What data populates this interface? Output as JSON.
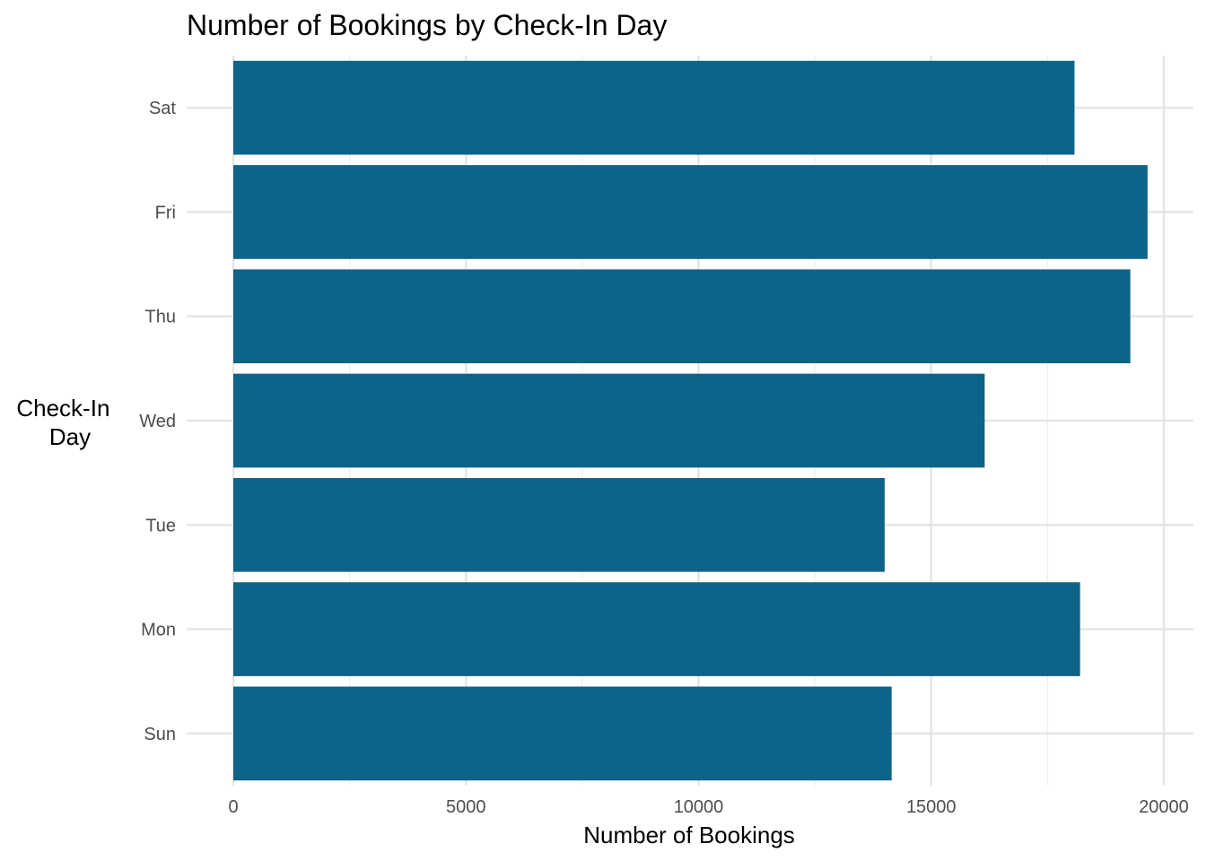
{
  "chart_data": {
    "type": "bar",
    "orientation": "horizontal",
    "title": "Number of Bookings by Check-In Day",
    "xlabel": "Number of Bookings",
    "ylabel_lines": [
      "Check-In",
      "Day"
    ],
    "categories": [
      "Sun",
      "Mon",
      "Tue",
      "Wed",
      "Thu",
      "Fri",
      "Sat"
    ],
    "values": [
      14150,
      18200,
      14000,
      16150,
      19280,
      19650,
      18080
    ],
    "xlim": [
      0,
      20000
    ],
    "x_ticks": [
      0,
      5000,
      10000,
      15000,
      20000
    ],
    "x_tick_labels": [
      "0",
      "5000",
      "10000",
      "15000",
      "20000"
    ],
    "grid": true,
    "legend": "none",
    "bar_color": "#0e6388"
  }
}
